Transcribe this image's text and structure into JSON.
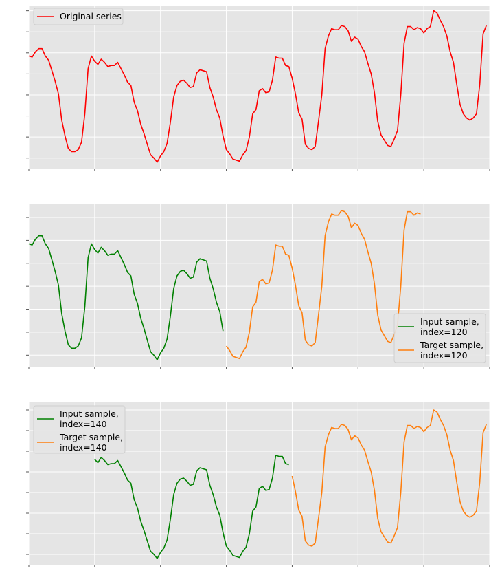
{
  "chart_data": [
    {
      "type": "line",
      "xlim": [
        60,
        200
      ],
      "ylim": [
        -0.3,
        1.25
      ],
      "grid": true,
      "legend_position": "upper-left",
      "xticks": [
        "60",
        "80",
        "100",
        "120",
        "140",
        "160",
        "180",
        "200"
      ],
      "yticks": [
        "−0.2",
        "0.0",
        "0.2",
        "0.4",
        "0.6",
        "0.8",
        "1.0",
        "1.2"
      ],
      "series": [
        {
          "name": "Original series",
          "color": "#ff0000",
          "x_start": 60,
          "values": [
            0.77,
            0.76,
            0.81,
            0.84,
            0.84,
            0.77,
            0.73,
            0.63,
            0.53,
            0.41,
            0.16,
            0.01,
            -0.11,
            -0.14,
            -0.14,
            -0.12,
            -0.05,
            0.22,
            0.65,
            0.77,
            0.72,
            0.69,
            0.74,
            0.71,
            0.67,
            0.68,
            0.68,
            0.71,
            0.65,
            0.59,
            0.52,
            0.49,
            0.33,
            0.25,
            0.12,
            0.03,
            -0.07,
            -0.17,
            -0.2,
            -0.24,
            -0.18,
            -0.14,
            -0.06,
            0.14,
            0.38,
            0.49,
            0.53,
            0.54,
            0.51,
            0.47,
            0.48,
            0.61,
            0.64,
            0.63,
            0.62,
            0.47,
            0.38,
            0.26,
            0.18,
            0.01,
            -0.12,
            -0.16,
            -0.21,
            -0.22,
            -0.23,
            -0.17,
            -0.13,
            0.0,
            0.22,
            0.26,
            0.44,
            0.46,
            0.42,
            0.43,
            0.54,
            0.76,
            0.75,
            0.75,
            0.68,
            0.67,
            0.56,
            0.41,
            0.23,
            0.17,
            -0.07,
            -0.11,
            -0.12,
            -0.09,
            0.15,
            0.4,
            0.84,
            0.96,
            1.03,
            1.02,
            1.02,
            1.06,
            1.05,
            1.01,
            0.91,
            0.95,
            0.93,
            0.86,
            0.81,
            0.7,
            0.6,
            0.42,
            0.15,
            0.02,
            -0.03,
            -0.08,
            -0.09,
            -0.02,
            0.06,
            0.4,
            0.89,
            1.05,
            1.05,
            1.02,
            1.04,
            1.03,
            0.99,
            1.03,
            1.05,
            1.2,
            1.18,
            1.11,
            1.05,
            0.96,
            0.81,
            0.71,
            0.5,
            0.31,
            0.22,
            0.18,
            0.16,
            0.18,
            0.22,
            0.5,
            0.98,
            1.06
          ]
        }
      ]
    },
    {
      "type": "line",
      "xlim": [
        60,
        200
      ],
      "ylim": [
        -0.3,
        1.12
      ],
      "grid": true,
      "legend_position": "lower-right",
      "xticks": [
        "60",
        "80",
        "100",
        "120",
        "140",
        "160",
        "180",
        "200"
      ],
      "yticks": [
        "−0.2",
        "0.0",
        "0.2",
        "0.4",
        "0.6",
        "0.8",
        "1.0"
      ],
      "series": [
        {
          "name": "Input sample,\nindex=120",
          "color": "#008000",
          "x_start": 60,
          "x_end": 119
        },
        {
          "name": "Target sample,\nindex=120",
          "color": "#ff7f0e",
          "x_start": 120,
          "x_end": 179
        }
      ]
    },
    {
      "type": "line",
      "xlim": [
        60,
        200
      ],
      "ylim": [
        -0.3,
        1.28
      ],
      "grid": true,
      "legend_position": "upper-left",
      "xticks": [
        "60",
        "80",
        "100",
        "120",
        "140",
        "160",
        "180",
        "200"
      ],
      "yticks": [
        "−0.2",
        "0.0",
        "0.2",
        "0.4",
        "0.6",
        "0.8",
        "1.0",
        "1.2"
      ],
      "series": [
        {
          "name": "Input sample,\nindex=140",
          "color": "#008000",
          "x_start": 80,
          "x_end": 139
        },
        {
          "name": "Target sample,\nindex=140",
          "color": "#ff7f0e",
          "x_start": 140,
          "x_end": 199
        }
      ]
    }
  ]
}
